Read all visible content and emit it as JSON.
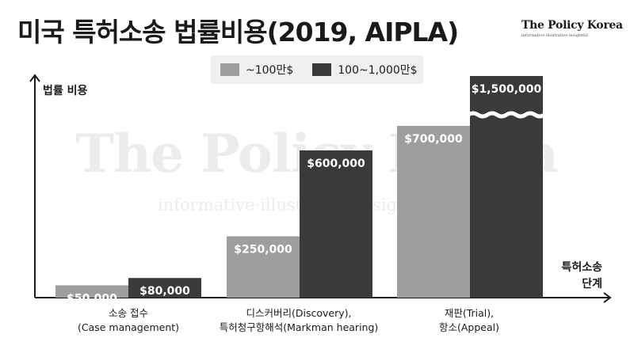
{
  "title": "미국 특허소송 법률비용(2019, AIPLA)",
  "logo": {
    "name": "The Policy Korea",
    "tagline": "informative·illustrative·insightful"
  },
  "colors": {
    "series_small": "#9e9e9e",
    "series_large": "#3a3a3a",
    "legend_bg": "#f0f0f0",
    "axis": "#1a1a1a"
  },
  "chart_data": {
    "type": "bar",
    "ylabel": "법률 비용",
    "xlabel_lines": [
      "특허소송",
      "단계"
    ],
    "categories": [
      [
        "소송 접수",
        "(Case management)"
      ],
      [
        "디스커버리(Discovery),",
        "특허청구항해석(Markman hearing)"
      ],
      [
        "재판(Trial),",
        "항소(Appeal)"
      ]
    ],
    "series": [
      {
        "name": "~100만$",
        "values": [
          50000,
          250000,
          700000
        ],
        "labels": [
          "$50,000",
          "$250,000",
          "$700,000"
        ]
      },
      {
        "name": "100~1,000만$",
        "values": [
          80000,
          600000,
          1500000
        ],
        "labels": [
          "$80,000",
          "$600,000",
          "$1,500,000"
        ]
      }
    ],
    "ylim": [
      0,
      900000
    ],
    "axis_break": true,
    "grid": false,
    "legend_position": "top-center"
  }
}
